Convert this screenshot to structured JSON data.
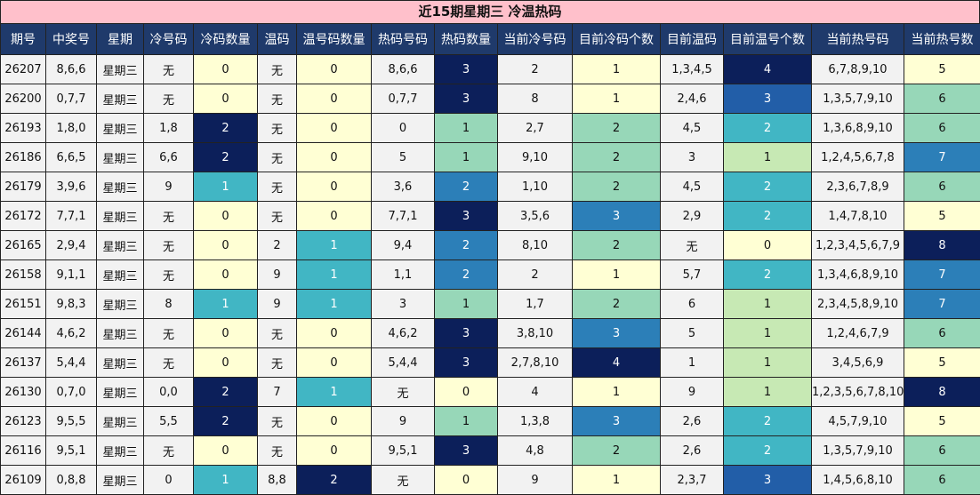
{
  "title": "近15期星期三 冷温热码",
  "headers": [
    "期号",
    "中奖号",
    "星期",
    "冷号码",
    "冷码数量",
    "温码",
    "温号码数量",
    "热码号码",
    "热码数量",
    "当前冷号码",
    "目前冷码个数",
    "目前温码",
    "目前温号个数",
    "当前热号码",
    "当前热号数"
  ],
  "rows": [
    [
      "26207",
      "8,6,6",
      "星期三",
      "无",
      "0",
      "无",
      "0",
      "8,6,6",
      "3",
      "2",
      "1",
      "1,3,4,5",
      "4",
      "6,7,8,9,10",
      "5"
    ],
    [
      "26200",
      "0,7,7",
      "星期三",
      "无",
      "0",
      "无",
      "0",
      "0,7,7",
      "3",
      "8",
      "1",
      "2,4,6",
      "3",
      "1,3,5,7,9,10",
      "6"
    ],
    [
      "26193",
      "1,8,0",
      "星期三",
      "1,8",
      "2",
      "无",
      "0",
      "0",
      "1",
      "2,7",
      "2",
      "4,5",
      "2",
      "1,3,6,8,9,10",
      "6"
    ],
    [
      "26186",
      "6,6,5",
      "星期三",
      "6,6",
      "2",
      "无",
      "0",
      "5",
      "1",
      "9,10",
      "2",
      "3",
      "1",
      "1,2,4,5,6,7,8",
      "7"
    ],
    [
      "26179",
      "3,9,6",
      "星期三",
      "9",
      "1",
      "无",
      "0",
      "3,6",
      "2",
      "1,10",
      "2",
      "4,5",
      "2",
      "2,3,6,7,8,9",
      "6"
    ],
    [
      "26172",
      "7,7,1",
      "星期三",
      "无",
      "0",
      "无",
      "0",
      "7,7,1",
      "3",
      "3,5,6",
      "3",
      "2,9",
      "2",
      "1,4,7,8,10",
      "5"
    ],
    [
      "26165",
      "2,9,4",
      "星期三",
      "无",
      "0",
      "2",
      "1",
      "9,4",
      "2",
      "8,10",
      "2",
      "无",
      "0",
      "1,2,3,4,5,6,7,9",
      "8"
    ],
    [
      "26158",
      "9,1,1",
      "星期三",
      "无",
      "0",
      "9",
      "1",
      "1,1",
      "2",
      "2",
      "1",
      "5,7",
      "2",
      "1,3,4,6,8,9,10",
      "7"
    ],
    [
      "26151",
      "9,8,3",
      "星期三",
      "8",
      "1",
      "9",
      "1",
      "3",
      "1",
      "1,7",
      "2",
      "6",
      "1",
      "2,3,4,5,8,9,10",
      "7"
    ],
    [
      "26144",
      "4,6,2",
      "星期三",
      "无",
      "0",
      "无",
      "0",
      "4,6,2",
      "3",
      "3,8,10",
      "3",
      "5",
      "1",
      "1,2,4,6,7,9",
      "6"
    ],
    [
      "26137",
      "5,4,4",
      "星期三",
      "无",
      "0",
      "无",
      "0",
      "5,4,4",
      "3",
      "2,7,8,10",
      "4",
      "1",
      "1",
      "3,4,5,6,9",
      "5"
    ],
    [
      "26130",
      "0,7,0",
      "星期三",
      "0,0",
      "2",
      "7",
      "1",
      "无",
      "0",
      "4",
      "1",
      "9",
      "1",
      "1,2,3,5,6,7,8,10",
      "8"
    ],
    [
      "26123",
      "9,5,5",
      "星期三",
      "5,5",
      "2",
      "无",
      "0",
      "9",
      "1",
      "1,3,8",
      "3",
      "2,6",
      "2",
      "4,5,7,9,10",
      "5"
    ],
    [
      "26116",
      "9,5,1",
      "星期三",
      "无",
      "0",
      "无",
      "0",
      "9,5,1",
      "3",
      "4,8",
      "2",
      "2,6",
      "2",
      "1,3,5,7,9,10",
      "6"
    ],
    [
      "26109",
      "0,8,8",
      "星期三",
      "0",
      "1",
      "8,8",
      "2",
      "无",
      "0",
      "9",
      "1",
      "2,3,7",
      "3",
      "1,4,5,6,8,10",
      "6"
    ]
  ],
  "colors": {
    "title_bg": "#ffc0cb",
    "header_bg": "#1f3a6b",
    "level_0": "#ffffd4",
    "level_1": "#97d7b8",
    "level_2": "#41b6c4",
    "level_3": "#225ea8",
    "level_4": "#0c1f5a"
  }
}
